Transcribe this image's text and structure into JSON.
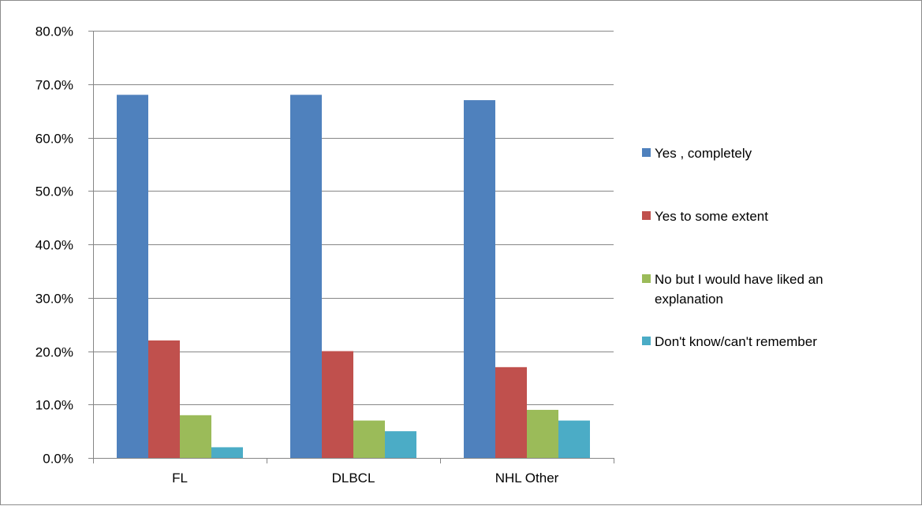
{
  "chart_data": {
    "type": "bar",
    "categories": [
      "FL",
      "DLBCL",
      "NHL Other"
    ],
    "series": [
      {
        "name": "Yes , completely",
        "values": [
          68.0,
          68.0,
          67.0
        ],
        "color": "#4f81bd"
      },
      {
        "name": "Yes to some extent",
        "values": [
          22.0,
          20.0,
          17.0
        ],
        "color": "#c0504d"
      },
      {
        "name": "No but I would have liked an explanation",
        "legend_lines": [
          "No but I would have liked an",
          "explanation"
        ],
        "values": [
          8.0,
          7.0,
          9.0
        ],
        "color": "#9bbb59"
      },
      {
        "name": "Don't know/can't remember",
        "values": [
          2.0,
          5.0,
          7.0
        ],
        "color": "#4bacc6"
      }
    ],
    "y_ticks": [
      "0.0%",
      "10.0%",
      "20.0%",
      "30.0%",
      "40.0%",
      "50.0%",
      "60.0%",
      "70.0%",
      "80.0%"
    ],
    "ylim": [
      0,
      80
    ],
    "y_unit": "%",
    "grid": "horizontal",
    "legend_position": "right",
    "title": "",
    "xlabel": "",
    "ylabel": ""
  }
}
